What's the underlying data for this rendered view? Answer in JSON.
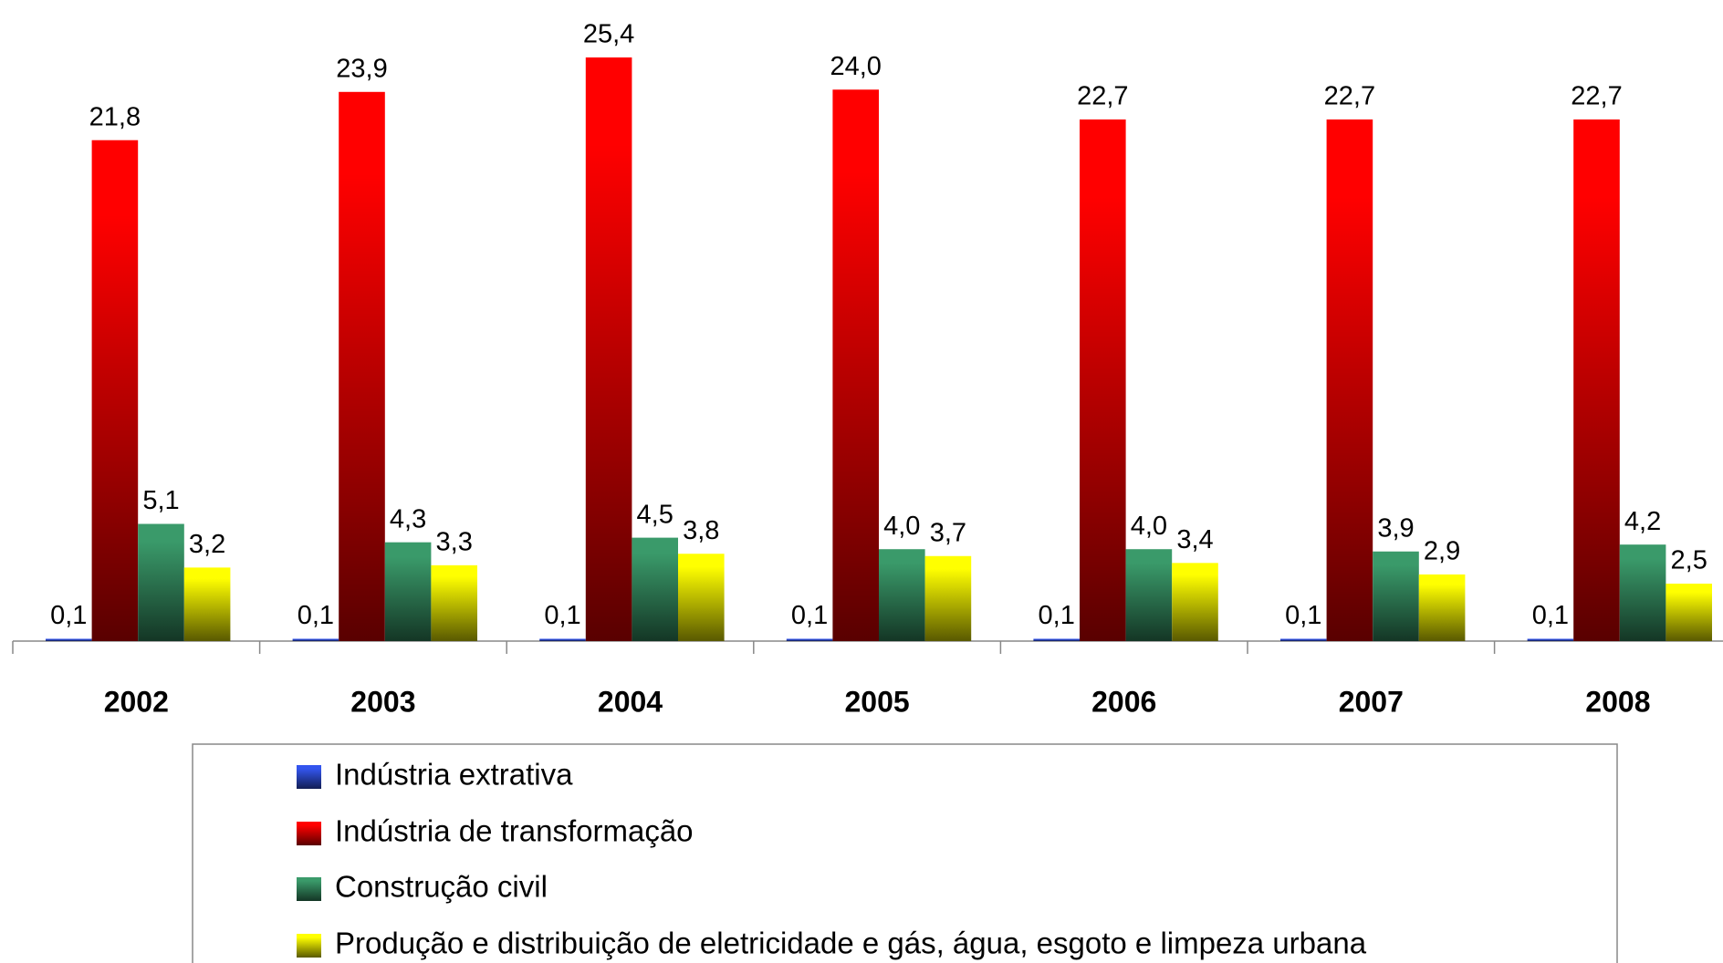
{
  "chart_data": {
    "type": "bar",
    "categories": [
      "2002",
      "2003",
      "2004",
      "2005",
      "2006",
      "2007",
      "2008"
    ],
    "series": [
      {
        "name": "Indústria extrativa",
        "color": "#3355ee",
        "values": [
          0.1,
          0.1,
          0.1,
          0.1,
          0.1,
          0.1,
          0.1
        ],
        "value_labels": [
          "0,1",
          "0,1",
          "0,1",
          "0,1",
          "0,1",
          "0,1",
          "0,1"
        ]
      },
      {
        "name": "Indústria de transformação",
        "color": "#ff0000",
        "values": [
          21.8,
          23.9,
          25.4,
          24.0,
          22.7,
          22.7,
          22.7
        ],
        "value_labels": [
          "21,8",
          "23,9",
          "25,4",
          "24,0",
          "22,7",
          "22,7",
          "22,7"
        ]
      },
      {
        "name": "Construção civil",
        "color": "#3a9a6a",
        "values": [
          5.1,
          4.3,
          4.5,
          4.0,
          4.0,
          3.9,
          4.2
        ],
        "value_labels": [
          "5,1",
          "4,3",
          "4,5",
          "4,0",
          "4,0",
          "3,9",
          "4,2"
        ]
      },
      {
        "name": "Produção e distribuição de eletricidade e gás, água, esgoto e limpeza urbana",
        "color": "#ffff00",
        "values": [
          3.2,
          3.3,
          3.8,
          3.7,
          3.4,
          2.9,
          2.5
        ],
        "value_labels": [
          "3,2",
          "3,3",
          "3,8",
          "3,7",
          "3,4",
          "2,9",
          "2,5"
        ]
      }
    ]
  }
}
